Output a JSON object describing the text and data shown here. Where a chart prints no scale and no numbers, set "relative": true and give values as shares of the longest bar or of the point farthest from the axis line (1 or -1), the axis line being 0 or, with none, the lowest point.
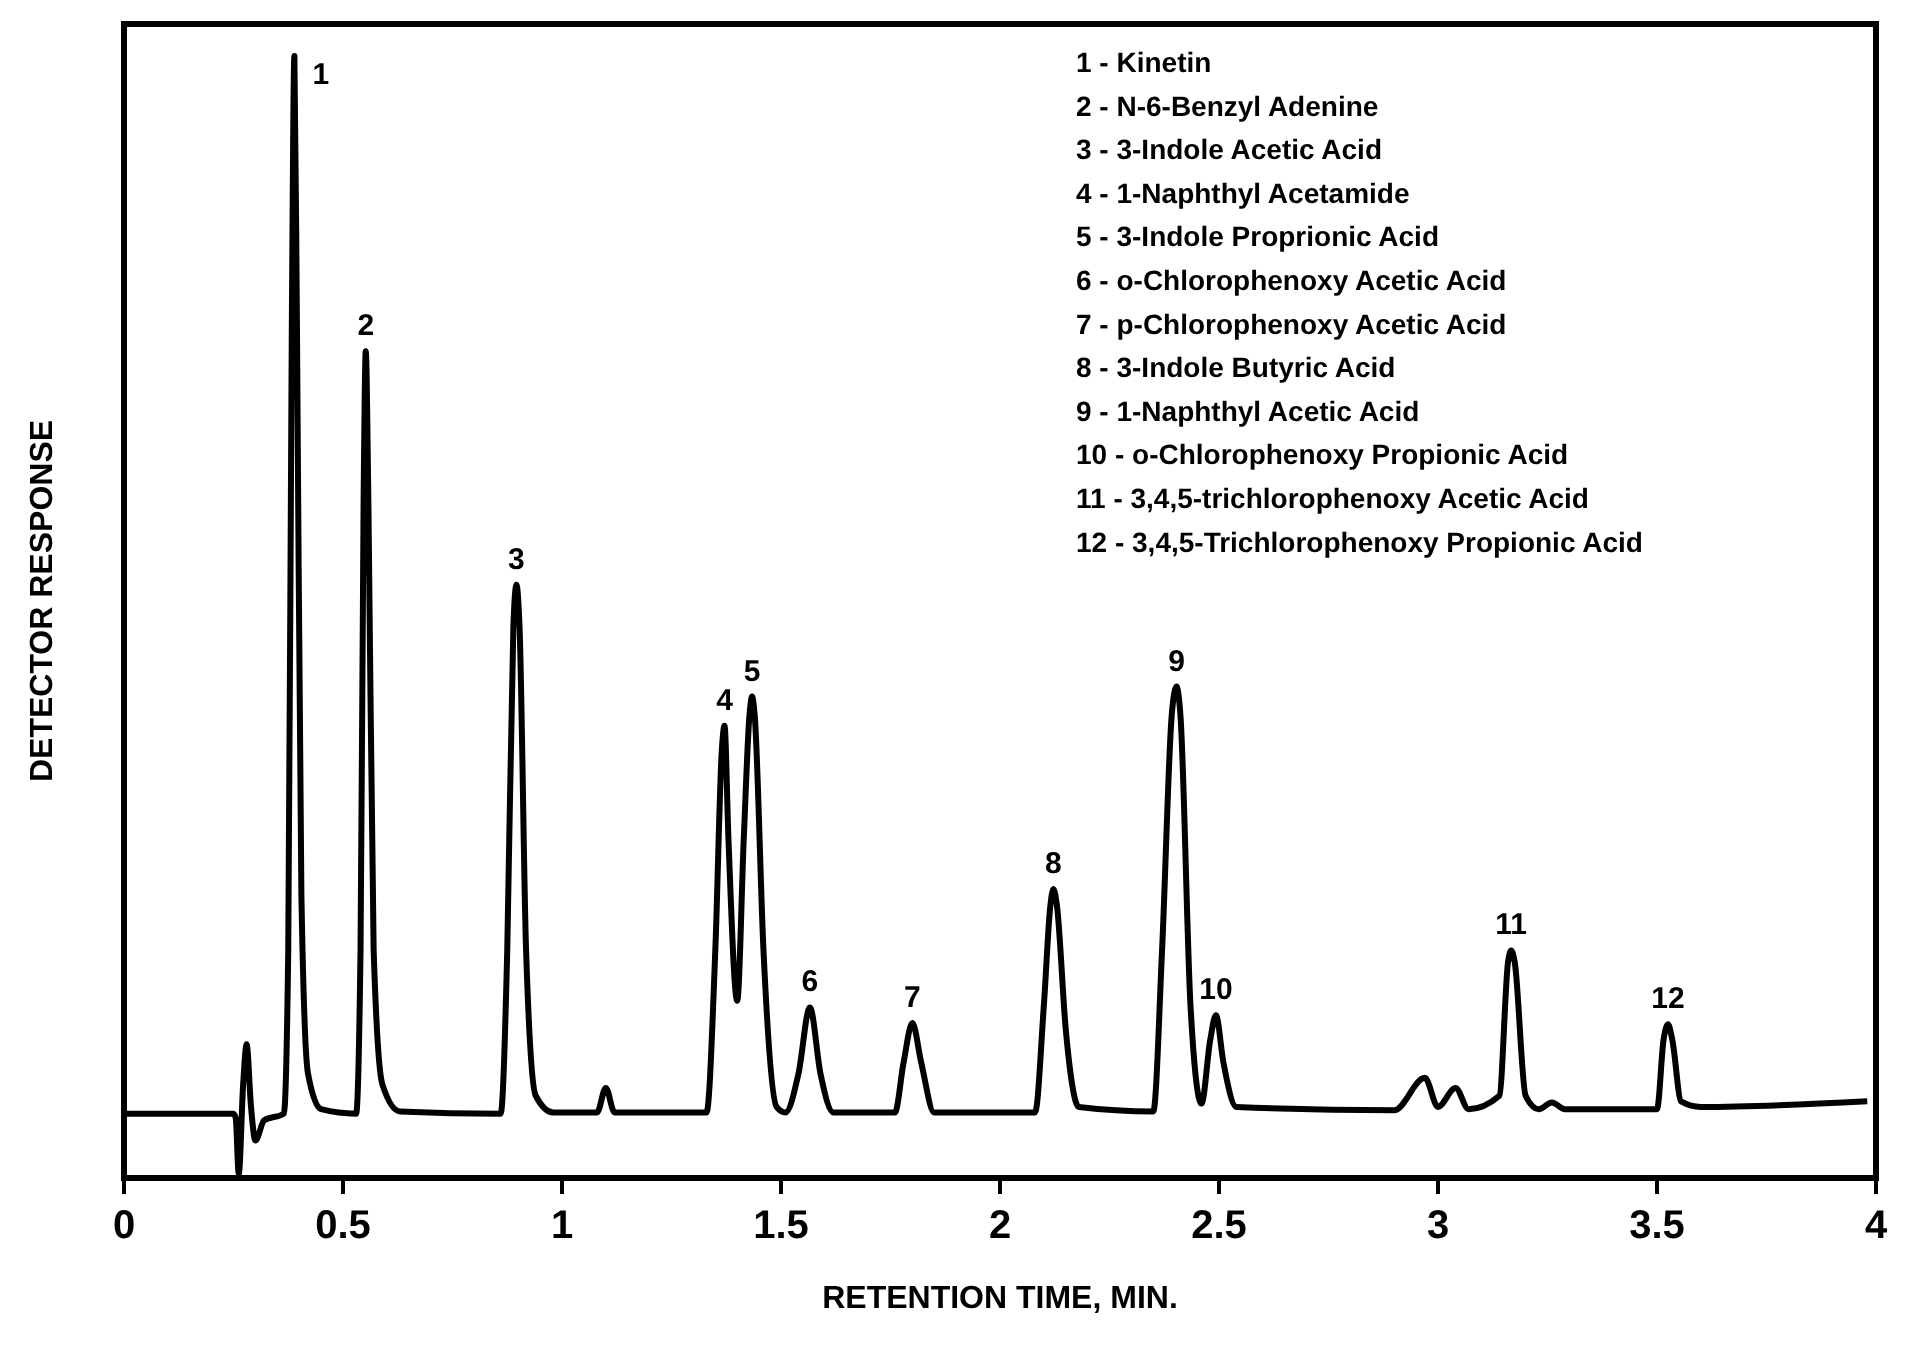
{
  "chart_data": {
    "type": "line",
    "relative": true,
    "xlabel": "RETENTION TIME, MIN.",
    "ylabel": "DETECTOR RESPONSE",
    "xlim": [
      0,
      4
    ],
    "xticks": [
      0,
      0.5,
      1,
      1.5,
      2,
      2.5,
      3,
      3.5,
      4
    ],
    "marker": "none",
    "line_style": "solid",
    "grid": false,
    "series": [
      {
        "color": "#000000",
        "x": [
          0,
          0.25,
          0.255,
          0.262,
          0.272,
          0.28,
          0.29,
          0.3,
          0.32,
          0.365,
          0.375,
          0.383,
          0.389,
          0.395,
          0.405,
          0.42,
          0.45,
          0.53,
          0.54,
          0.547,
          0.552,
          0.558,
          0.57,
          0.59,
          0.63,
          0.86,
          0.875,
          0.889,
          0.896,
          0.903,
          0.918,
          0.94,
          0.98,
          1.08,
          1.1,
          1.12,
          1.33,
          1.35,
          1.365,
          1.371,
          1.38,
          1.4,
          1.415,
          1.428,
          1.434,
          1.44,
          1.46,
          1.49,
          1.51,
          1.54,
          1.566,
          1.59,
          1.62,
          1.76,
          1.78,
          1.8,
          1.82,
          1.85,
          2.08,
          2.1,
          2.115,
          2.122,
          2.13,
          2.15,
          2.18,
          2.35,
          2.37,
          2.392,
          2.403,
          2.412,
          2.435,
          2.46,
          2.48,
          2.493,
          2.51,
          2.54,
          2.9,
          2.97,
          3,
          3.04,
          3.07,
          3.14,
          3.16,
          3.167,
          3.175,
          3.2,
          3.23,
          3.26,
          3.29,
          3.5,
          3.515,
          3.525,
          3.535,
          3.555,
          3.6,
          3.98
        ],
        "values": [
          0.054,
          0.054,
          0.05,
          0,
          0.08,
          0.116,
          0.06,
          0.03,
          0.048,
          0.054,
          0.2,
          0.75,
          1,
          0.75,
          0.25,
          0.09,
          0.058,
          0.054,
          0.2,
          0.6,
          0.736,
          0.6,
          0.2,
          0.08,
          0.056,
          0.054,
          0.2,
          0.49,
          0.527,
          0.49,
          0.2,
          0.07,
          0.055,
          0.055,
          0.077,
          0.055,
          0.055,
          0.2,
          0.38,
          0.401,
          0.3,
          0.155,
          0.3,
          0.41,
          0.427,
          0.41,
          0.2,
          0.06,
          0.055,
          0.09,
          0.149,
          0.09,
          0.055,
          0.055,
          0.1,
          0.135,
          0.1,
          0.055,
          0.055,
          0.15,
          0.24,
          0.255,
          0.24,
          0.13,
          0.06,
          0.056,
          0.2,
          0.41,
          0.436,
          0.41,
          0.15,
          0.063,
          0.12,
          0.142,
          0.1,
          0.06,
          0.057,
          0.086,
          0.06,
          0.077,
          0.058,
          0.07,
          0.19,
          0.2,
          0.19,
          0.07,
          0.058,
          0.064,
          0.058,
          0.058,
          0.12,
          0.134,
          0.12,
          0.065,
          0.06,
          0.065
        ]
      }
    ],
    "annotations": [
      {
        "text": "1",
        "x": 0.389,
        "y": 1
      },
      {
        "text": "2",
        "x": 0.552,
        "y": 0.736
      },
      {
        "text": "3",
        "x": 0.896,
        "y": 0.527
      },
      {
        "text": "4",
        "x": 1.371,
        "y": 0.401
      },
      {
        "text": "5",
        "x": 1.434,
        "y": 0.427
      },
      {
        "text": "6",
        "x": 1.566,
        "y": 0.149
      },
      {
        "text": "7",
        "x": 1.8,
        "y": 0.135
      },
      {
        "text": "8",
        "x": 2.122,
        "y": 0.255
      },
      {
        "text": "9",
        "x": 2.403,
        "y": 0.436
      },
      {
        "text": "10",
        "x": 2.493,
        "y": 0.142
      },
      {
        "text": "11",
        "x": 3.167,
        "y": 0.2
      },
      {
        "text": "12",
        "x": 3.525,
        "y": 0.134
      },
      "1 - Kinetin",
      "2 - N-6-Benzyl Adenine",
      "3 - 3-Indole Acetic Acid",
      "4 - 1-Naphthyl Acetamide",
      "5 - 3-Indole Proprionic Acid",
      "6 - o-Chlorophenoxy Acetic Acid",
      "7 - p-Chlorophenoxy Acetic Acid",
      "8 - 3-Indole Butyric Acid",
      "9 - 1-Naphthyl Acetic Acid",
      "10 - o-Chlorophenoxy Propionic Acid",
      "11 - 3,4,5-trichlorophenoxy Acetic Acid",
      "12 - 3,4,5-Trichlorophenoxy Propionic Acid"
    ]
  }
}
